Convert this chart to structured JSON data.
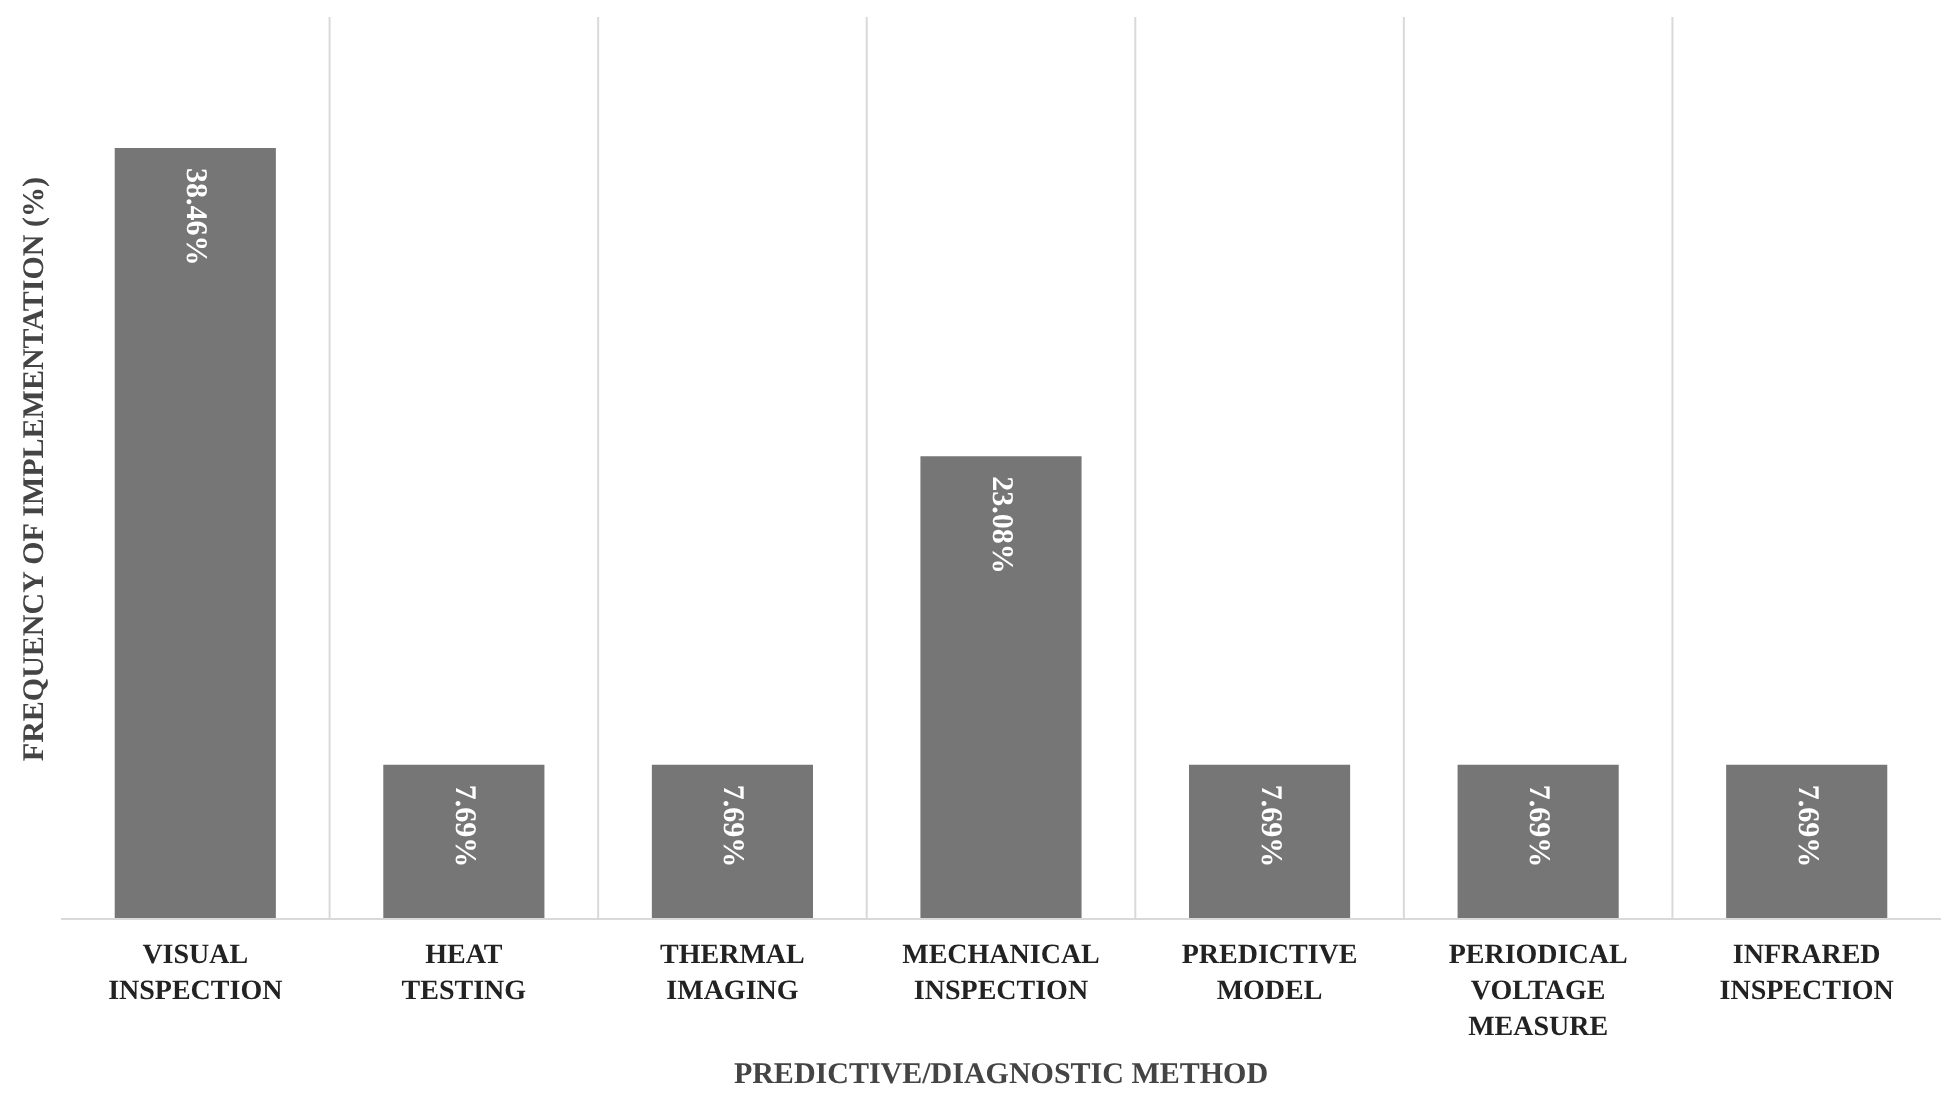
{
  "chart_data": {
    "type": "bar",
    "xlabel": "PREDICTIVE/DIAGNOSTIC METHOD",
    "ylabel": "FREQUENCY OF IMPLEMENTATION (%)",
    "categories": [
      "VISUAL INSPECTION",
      "HEAT TESTING",
      "THERMAL IMAGING",
      "MECHANICAL INSPECTION",
      "PREDICTIVE MODEL",
      "PERIODICAL VOLTAGE MEASURE",
      "INFRARED INSPECTION"
    ],
    "values": [
      38.46,
      7.69,
      7.69,
      23.08,
      7.69,
      7.69,
      7.69
    ],
    "value_labels": [
      "38.46%",
      "7.69%",
      "7.69%",
      "23.08%",
      "7.69%",
      "7.69%",
      "7.69%"
    ],
    "color": "#767676",
    "ylim": [
      0,
      45
    ],
    "grid": "x",
    "tick_labels": "x"
  }
}
